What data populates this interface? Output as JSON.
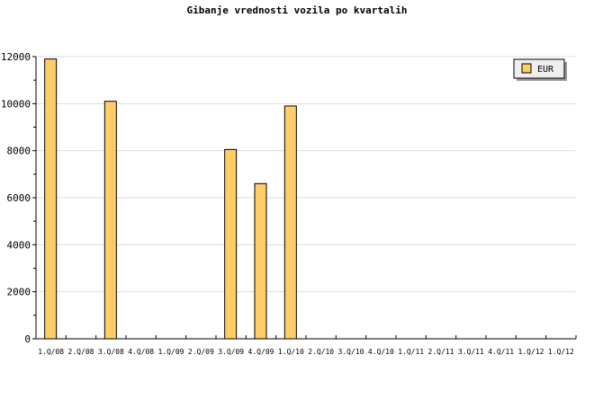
{
  "chart_data": {
    "type": "bar",
    "title": "Gibanje vrednosti vozila po kvartalih",
    "xlabel": "",
    "ylabel": "",
    "categories": [
      "1.Q/08",
      "2.Q/08",
      "3.Q/08",
      "4.Q/08",
      "1.Q/09",
      "2.Q/09",
      "3.Q/09",
      "4.Q/09",
      "1.Q/10",
      "2.Q/10",
      "3.Q/10",
      "4.Q/10",
      "1.Q/11",
      "2.Q/11",
      "3.Q/11",
      "4.Q/11",
      "1.Q/12",
      "1.Q/12"
    ],
    "series": [
      {
        "name": "EUR",
        "values": [
          11900,
          0,
          10100,
          0,
          0,
          0,
          8050,
          6600,
          9900,
          0,
          0,
          0,
          0,
          0,
          0,
          0,
          0,
          0
        ]
      }
    ],
    "ylim": [
      0,
      12000
    ],
    "yticks": [
      0,
      2000,
      4000,
      6000,
      8000,
      10000,
      12000
    ],
    "grid": true,
    "legend": "top-right",
    "colors": {
      "bar": "#ffcc66",
      "stroke": "#000000",
      "grid": "#dddddd"
    }
  }
}
